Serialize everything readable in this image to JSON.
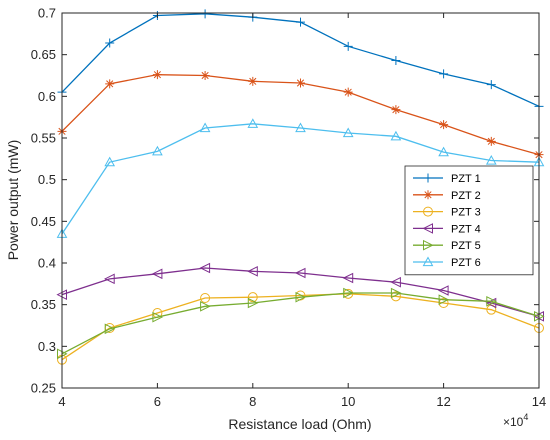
{
  "chart_data": {
    "type": "line",
    "title": "",
    "xlabel": "Resistance load (Ohm)",
    "ylabel": "Power output (mW)",
    "x_multiplier_label": "×10",
    "x_multiplier_exponent": "4",
    "xlim": [
      4,
      14
    ],
    "ylim": [
      0.25,
      0.7
    ],
    "xticks": [
      4,
      6,
      8,
      10,
      12,
      14
    ],
    "xtick_labels": [
      "4",
      "6",
      "8",
      "10",
      "12",
      "14"
    ],
    "yticks": [
      0.25,
      0.3,
      0.35,
      0.4,
      0.45,
      0.5,
      0.55,
      0.6,
      0.65,
      0.7
    ],
    "ytick_labels": [
      "0.25",
      "0.3",
      "0.35",
      "0.4",
      "0.45",
      "0.5",
      "0.55",
      "0.6",
      "0.65",
      "0.7"
    ],
    "grid": false,
    "legend_position": "center-right",
    "x": [
      4,
      5,
      6,
      7,
      8,
      9,
      10,
      11,
      12,
      13,
      14
    ],
    "series": [
      {
        "name": "PZT 1",
        "color": "#0072BD",
        "marker": "plus",
        "values": [
          0.605,
          0.664,
          0.697,
          0.699,
          0.695,
          0.689,
          0.66,
          0.643,
          0.627,
          0.614,
          0.588
        ]
      },
      {
        "name": "PZT 2",
        "color": "#D95319",
        "marker": "asterisk",
        "values": [
          0.558,
          0.615,
          0.626,
          0.625,
          0.618,
          0.616,
          0.605,
          0.584,
          0.566,
          0.546,
          0.53
        ]
      },
      {
        "name": "PZT 3",
        "color": "#EDB120",
        "marker": "circle",
        "values": [
          0.284,
          0.322,
          0.34,
          0.358,
          0.359,
          0.361,
          0.363,
          0.36,
          0.352,
          0.344,
          0.322
        ]
      },
      {
        "name": "PZT 4",
        "color": "#7E2F8E",
        "marker": "triangle-left",
        "values": [
          0.362,
          0.381,
          0.387,
          0.394,
          0.39,
          0.388,
          0.382,
          0.377,
          0.367,
          0.352,
          0.336
        ]
      },
      {
        "name": "PZT 5",
        "color": "#77AC30",
        "marker": "triangle-right",
        "values": [
          0.291,
          0.321,
          0.335,
          0.348,
          0.352,
          0.359,
          0.364,
          0.364,
          0.356,
          0.354,
          0.336
        ]
      },
      {
        "name": "PZT 6",
        "color": "#4DBEEE",
        "marker": "triangle-up",
        "values": [
          0.435,
          0.521,
          0.534,
          0.562,
          0.567,
          0.562,
          0.556,
          0.552,
          0.533,
          0.523,
          0.521
        ]
      }
    ]
  }
}
